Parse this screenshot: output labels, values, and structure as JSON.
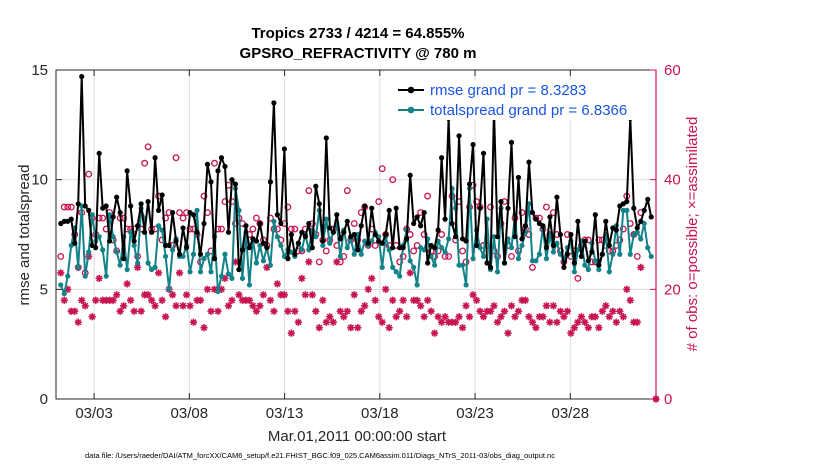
{
  "chart_data": {
    "type": "line",
    "title": "Tropics 2733 / 4214 = 64.855%",
    "subtitle": "GPSRO_REFRACTIVITY @ 780 m",
    "xlabel": "Mar.01,2011 00:00:00 start",
    "ylabel": "rmse and totalspread",
    "ylabel_right": "# of obs: o=possible; ×=assimilated",
    "xlim": [
      0,
      31.5
    ],
    "ylim": [
      0,
      15
    ],
    "ylim_right": [
      0,
      60
    ],
    "x_ticks": [
      {
        "value": 2,
        "label": "03/03"
      },
      {
        "value": 7,
        "label": "03/08"
      },
      {
        "value": 12,
        "label": "03/13"
      },
      {
        "value": 17,
        "label": "03/18"
      },
      {
        "value": 22,
        "label": "03/23"
      },
      {
        "value": 27,
        "label": "03/28"
      }
    ],
    "y_ticks": [
      "0",
      "5",
      "10",
      "15"
    ],
    "y_ticks_right": [
      "0",
      "20",
      "40",
      "60"
    ],
    "grid": true,
    "legend_position": "top-right",
    "series": [
      {
        "name": "rmse grand pr = 8.3283",
        "color": "#000000",
        "marker": "circle-filled",
        "values": [
          8.0,
          8.1,
          8.1,
          8.2,
          7.1,
          8.9,
          14.7,
          8.8,
          8.6,
          7.0,
          6.9,
          11.2,
          8.7,
          8.8,
          7.2,
          8.3,
          9.2,
          8.5,
          6.4,
          10.4,
          8.8,
          7.2,
          7.9,
          8.9,
          7.6,
          9.0,
          7.6,
          11.0,
          8.6,
          9.3,
          7.0,
          7.0,
          8.5,
          7.2,
          6.6,
          7.8,
          6.9,
          8.5,
          8.4,
          7.6,
          6.6,
          8.0,
          10.7,
          9.9,
          6.4,
          10.4,
          11.0,
          10.6,
          7.6,
          10.0,
          9.8,
          5.9,
          6.8,
          7.9,
          6.9,
          7.3,
          7.2,
          8.0,
          7.1,
          6.9,
          9.9,
          13.5,
          8.4,
          8.0,
          11.4,
          6.4,
          7.5,
          6.6,
          7.1,
          7.6,
          7.4,
          8.0,
          6.9,
          9.7,
          8.9,
          7.2,
          11.9,
          7.8,
          7.6,
          8.4,
          7.3,
          7.6,
          8.1,
          7.4,
          7.5,
          6.8,
          7.9,
          8.8,
          7.1,
          8.7,
          7.5,
          7.2,
          7.1,
          7.5,
          8.6,
          6.9,
          8.7,
          6.9,
          6.9,
          7.3,
          10.2,
          8.0,
          8.3,
          7.9,
          8.5,
          6.2,
          7.0,
          6.9,
          7.7,
          11.0,
          8.2,
          12.8,
          8.0,
          7.4,
          12.0,
          7.3,
          7.2,
          9.8,
          11.6,
          7.0,
          8.7,
          11.2,
          6.2,
          6.0,
          13.2,
          7.4,
          9.0,
          6.2,
          8.7,
          11.7,
          7.4,
          10.1,
          7.3,
          7.9,
          10.8,
          8.5,
          8.2,
          8.0,
          7.9,
          6.9,
          8.3,
          7.0,
          9.2,
          7.5,
          6.0,
          6.6,
          7.5,
          6.2,
          8.1,
          6.5,
          7.2,
          6.3,
          6.7,
          8.4,
          6.1,
          6.6,
          8.1,
          7.0,
          7.8,
          7.7,
          8.8,
          8.9,
          9.0,
          12.8,
          8.7,
          7.8,
          8.1,
          8.6,
          9.1,
          8.3
        ]
      },
      {
        "name": "totalspread grand pr = 6.8366",
        "color": "#138389",
        "marker": "circle-filled",
        "values": [
          5.2,
          4.8,
          5.6,
          7.0,
          7.8,
          6.0,
          8.8,
          5.6,
          6.7,
          8.4,
          7.2,
          7.4,
          6.8,
          5.6,
          8.4,
          7.4,
          6.7,
          6.1,
          7.4,
          5.9,
          7.6,
          7.0,
          6.2,
          8.7,
          8.2,
          6.2,
          5.9,
          6.0,
          7.9,
          7.7,
          6.5,
          5.0,
          6.8,
          7.3,
          6.5,
          6.5,
          7.0,
          5.8,
          6.6,
          8.6,
          5.8,
          6.4,
          6.6,
          5.8,
          7.4,
          4.9,
          5.6,
          6.6,
          5.7,
          5.5,
          9.6,
          8.6,
          5.5,
          7.6,
          5.2,
          7.3,
          6.2,
          7.0,
          6.3,
          6.9,
          6.1,
          8.1,
          7.4,
          7.0,
          6.5,
          6.8,
          6.7,
          6.5,
          7.1,
          6.8,
          7.5,
          6.8,
          7.7,
          7.4,
          8.6,
          7.0,
          8.2,
          7.1,
          7.6,
          8.0,
          6.5,
          7.7,
          6.9,
          7.3,
          6.6,
          7.5,
          6.6,
          7.2,
          7.0,
          7.2,
          7.6,
          7.4,
          6.0,
          7.4,
          6.8,
          6.0,
          5.8,
          5.6,
          7.0,
          7.7,
          6.3,
          6.0,
          5.2,
          6.9,
          6.8,
          7.3,
          6.5,
          6.1,
          7.2,
          6.9,
          6.7,
          7.3,
          9.6,
          8.7,
          6.1,
          6.1,
          5.2,
          9.6,
          6.4,
          7.7,
          6.9,
          6.5,
          8.2,
          5.9,
          7.4,
          5.8,
          8.7,
          6.2,
          7.3,
          6.9,
          8.4,
          6.4,
          7.0,
          7.6,
          8.9,
          6.3,
          6.3,
          6.6,
          7.8,
          6.4,
          7.5,
          6.7,
          7.1,
          6.6,
          6.3,
          6.9,
          7.2,
          5.8,
          6.8,
          7.2,
          6.1,
          5.9,
          7.1,
          6.3,
          5.9,
          6.6,
          7.5,
          5.8,
          6.6,
          7.9,
          6.6,
          8.6,
          8.6,
          6.6,
          7.5,
          7.6,
          7.3,
          8.0,
          6.9,
          6.5
        ]
      },
      {
        "name": "possible",
        "axis": "right",
        "color": "#c8144f",
        "marker": "circle-open",
        "values": [
          26,
          35,
          35,
          35,
          30,
          24,
          34,
          23,
          41,
          33,
          30,
          33,
          33,
          31,
          34,
          29,
          27,
          33,
          33,
          31,
          31,
          31,
          26,
          31,
          43,
          46,
          31,
          31,
          37,
          29,
          33,
          34,
          28,
          44,
          34,
          33,
          34,
          31,
          31,
          30,
          25,
          37,
          34,
          27,
          43,
          31,
          31,
          36,
          39,
          36,
          32,
          33,
          32,
          28,
          30,
          31,
          33,
          32,
          29,
          28,
          33,
          31,
          31,
          29,
          32,
          35,
          31,
          31,
          27,
          27,
          31,
          38,
          32,
          30,
          25,
          29,
          27,
          29,
          31,
          28,
          25,
          26,
          38,
          29,
          32,
          29,
          34,
          35,
          28,
          31,
          28,
          36,
          42,
          30,
          28,
          40,
          28,
          25,
          26,
          31,
          30,
          27,
          28,
          34,
          30,
          37,
          27,
          26,
          27,
          30,
          26,
          26,
          37,
          29,
          36,
          27,
          25,
          35,
          39,
          36,
          35,
          28,
          28,
          35,
          27,
          26,
          32,
          36,
          28,
          26,
          33,
          27,
          34,
          31,
          30,
          24,
          33,
          33,
          31,
          35,
          30,
          34,
          30,
          27,
          25,
          30,
          26,
          27,
          22,
          28,
          29,
          29,
          25,
          25,
          29,
          29,
          28,
          27,
          27,
          28,
          29,
          31,
          37,
          32,
          30,
          26,
          34
        ]
      },
      {
        "name": "assimilated",
        "axis": "right",
        "color": "#c8144f",
        "marker": "asterisk",
        "values": [
          23,
          18,
          20,
          16,
          16,
          14,
          18,
          17,
          26,
          15,
          18,
          22,
          18,
          18,
          18,
          18,
          19,
          16,
          17,
          21,
          18,
          16,
          24,
          16,
          19,
          19,
          18,
          17,
          23,
          18,
          15,
          20,
          19,
          17,
          23,
          17,
          19,
          17,
          14,
          18,
          18,
          13,
          20,
          16,
          20,
          16,
          20,
          22,
          17,
          18,
          25,
          19,
          18,
          18,
          18,
          17,
          16,
          17,
          19,
          24,
          18,
          16,
          21,
          19,
          19,
          16,
          12,
          16,
          14,
          22,
          19,
          25,
          19,
          16,
          13,
          18,
          14,
          15,
          14,
          25,
          16,
          15,
          16,
          13,
          19,
          13,
          16,
          17,
          20,
          22,
          18,
          15,
          14,
          20,
          13,
          18,
          15,
          16,
          18,
          15,
          23,
          18,
          18,
          17,
          15,
          18,
          16,
          12,
          15,
          14,
          15,
          14,
          14,
          14,
          15,
          13,
          17,
          15,
          19,
          18,
          16,
          15,
          16,
          16,
          17,
          14,
          15,
          16,
          12,
          17,
          15,
          16,
          18,
          18,
          15,
          14,
          13,
          15,
          15,
          17,
          14,
          17,
          14,
          16,
          15,
          16,
          12,
          13,
          14,
          15,
          14,
          13,
          15,
          15,
          13,
          16,
          17,
          15,
          16,
          14,
          16,
          15,
          20,
          18,
          14,
          14,
          24
        ]
      }
    ],
    "right_axis_point": 0
  },
  "footer": {
    "datafile": "data file: /Users/raeder/DAI/ATM_forcXX/CAM6_setup/f.e21.FHIST_BGC.f09_025.CAM6assim.011/Diags_NTrS_2011-03/obs_diag_output.nc"
  }
}
